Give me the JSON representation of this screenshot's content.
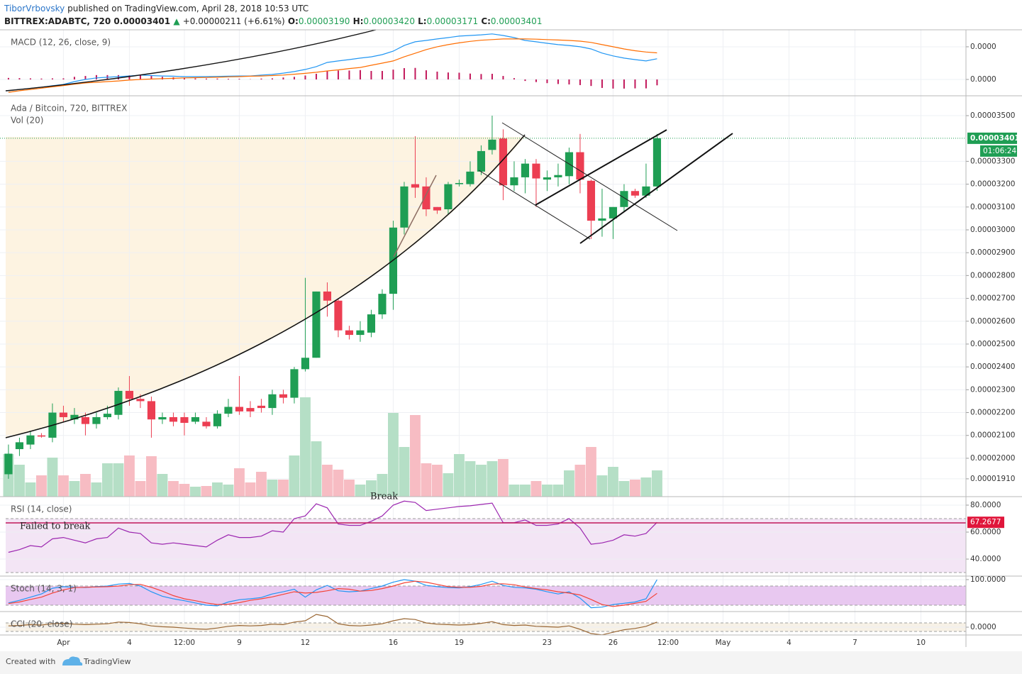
{
  "header": {
    "author": "TiborVrbovsky",
    "published": "published on TradingView.com, April 28, 2018 10:53 UTC",
    "symbol": "BITTREX:ADABTC, 720",
    "price": "0.00003401",
    "arrow": "▲",
    "change": "+0.00000211 (+6.61%)",
    "o_label": "O:",
    "o": "0.00003190",
    "h_label": "H:",
    "h": "0.00003420",
    "l_label": "L:",
    "l": "0.00003171",
    "c_label": "C:",
    "c": "0.00003401"
  },
  "annotations": {
    "failed": "Failed to break",
    "break": "Break"
  },
  "footer": {
    "created": "Created with",
    "brand": "TradingView"
  },
  "chart_data": [
    {
      "type": "macd",
      "title": "MACD (12, 26, close, 9)",
      "ylim": [
        -7.5e-07,
        2.28e-06
      ],
      "yticks": [
        {
          "value": 0,
          "label": "0.0000"
        },
        {
          "value": 1.5e-06,
          "label": "0.0000"
        }
      ],
      "series": [
        {
          "color": "#2196f3",
          "values": [
            -5.2e-07,
            -4.6e-07,
            -4.1e-07,
            -3.6e-07,
            -2.9e-07,
            -2.3e-07,
            -1e-07,
            0,
            7e-08,
            1e-07,
            1.3e-07,
            1.6e-07,
            2e-07,
            1.8e-07,
            1.6e-07,
            1.5e-07,
            1.3e-07,
            1.3e-07,
            1.3e-07,
            1.4e-07,
            1.5e-07,
            1.6e-07,
            1.6e-07,
            2e-07,
            2.3e-07,
            2.9e-07,
            3.6e-07,
            4.6e-07,
            5.9e-07,
            7.8e-07,
            8.5e-07,
            9.1e-07,
            9.8e-07,
            1.04e-06,
            1.14e-06,
            1.3e-06,
            1.56e-06,
            1.73e-06,
            1.79e-06,
            1.86e-06,
            1.92e-06,
            1.99e-06,
            2.02e-06,
            2.05e-06,
            2.09e-06,
            2.02e-06,
            1.92e-06,
            1.79e-06,
            1.73e-06,
            1.66e-06,
            1.6e-06,
            1.56e-06,
            1.5e-06,
            1.4e-06,
            1.21e-06,
            1.08e-06,
            9.8e-07,
            9.1e-07,
            8.5e-07,
            9.5e-07
          ]
        },
        {
          "color": "#ff6d00",
          "values": [
            -5.9e-07,
            -5.2e-07,
            -4.6e-07,
            -4e-07,
            -3.4e-07,
            -2.8e-07,
            -2.2e-07,
            -1.6e-07,
            -1.3e-07,
            -1e-07,
            -7e-08,
            -3e-08,
            0,
            2e-08,
            4e-08,
            5e-08,
            7e-08,
            8e-08,
            9e-08,
            1e-07,
            1.2e-07,
            1.3e-07,
            1.5e-07,
            1.6e-07,
            1.8e-07,
            2e-07,
            2.4e-07,
            2.8e-07,
            3.3e-07,
            3.9e-07,
            4.4e-07,
            5e-07,
            5.5e-07,
            6.5e-07,
            7.5e-07,
            8.5e-07,
            1.04e-06,
            1.2e-06,
            1.37e-06,
            1.5e-06,
            1.6e-06,
            1.68e-06,
            1.75e-06,
            1.8e-06,
            1.83e-06,
            1.86e-06,
            1.86e-06,
            1.86e-06,
            1.85e-06,
            1.83e-06,
            1.81e-06,
            1.79e-06,
            1.76e-06,
            1.7e-06,
            1.6e-06,
            1.5e-06,
            1.4e-06,
            1.32e-06,
            1.26e-06,
            1.22e-06
          ]
        }
      ],
      "histogram": {
        "color": "#c2185b",
        "values": [
          7e-08,
          6e-08,
          5e-08,
          4e-08,
          5e-08,
          5e-08,
          1.2e-07,
          1.6e-07,
          2e-07,
          2e-07,
          2e-07,
          1.9e-07,
          2e-07,
          1.6e-07,
          1.2e-07,
          1e-07,
          6e-08,
          5e-08,
          4e-08,
          4e-08,
          3e-08,
          3e-08,
          1e-08,
          4e-08,
          5e-08,
          9e-08,
          1.2e-07,
          1.8e-07,
          2.6e-07,
          3.9e-07,
          4.1e-07,
          4.1e-07,
          4.3e-07,
          3.9e-07,
          3.9e-07,
          4.5e-07,
          5.2e-07,
          5.3e-07,
          4.2e-07,
          3.6e-07,
          3.2e-07,
          3.1e-07,
          2.7e-07,
          2.5e-07,
          2.6e-07,
          1.6e-07,
          6e-08,
          -7e-08,
          -1.2e-07,
          -1.7e-07,
          -2.1e-07,
          -2.3e-07,
          -2.6e-07,
          -3e-07,
          -3.9e-07,
          -4.2e-07,
          -4.2e-07,
          -4.1e-07,
          -4.1e-07,
          -2.7e-07
        ]
      }
    },
    {
      "type": "candlestick",
      "title": "Ada / Bitcoin, 720, BITTREX",
      "up_color": "#1f9e54",
      "down_color": "#ec3e52",
      "ylim": [
        1.832e-05,
        3.587e-05
      ],
      "yticks": [
        {
          "value": 3.5e-05,
          "label": "0.00003500"
        },
        {
          "value": 3.3e-05,
          "label": "0.00003300"
        },
        {
          "value": 3.2e-05,
          "label": "0.00003200"
        },
        {
          "value": 3.1e-05,
          "label": "0.00003100"
        },
        {
          "value": 3e-05,
          "label": "0.00003000"
        },
        {
          "value": 2.9e-05,
          "label": "0.00002900"
        },
        {
          "value": 2.8e-05,
          "label": "0.00002800"
        },
        {
          "value": 2.7e-05,
          "label": "0.00002700"
        },
        {
          "value": 2.6e-05,
          "label": "0.00002600"
        },
        {
          "value": 2.5e-05,
          "label": "0.00002500"
        },
        {
          "value": 2.4e-05,
          "label": "0.00002400"
        },
        {
          "value": 2.3e-05,
          "label": "0.00002300"
        },
        {
          "value": 2.2e-05,
          "label": "0.00002200"
        },
        {
          "value": 2.1e-05,
          "label": "0.00002100"
        },
        {
          "value": 2e-05,
          "label": "0.00002000"
        },
        {
          "value": 1.91e-05,
          "label": "0.00001910"
        }
      ],
      "open": [
        1.93e-05,
        2.04e-05,
        2.06e-05,
        2.1e-05,
        2.09e-05,
        2.2e-05,
        2.17e-05,
        2.18e-05,
        2.15e-05,
        2.18e-05,
        2.19e-05,
        2.295e-05,
        2.26e-05,
        2.25e-05,
        2.17e-05,
        2.18e-05,
        2.18e-05,
        2.16e-05,
        2.16e-05,
        2.14e-05,
        2.195e-05,
        2.225e-05,
        2.22e-05,
        2.23e-05,
        2.22e-05,
        2.28e-05,
        2.265e-05,
        2.39e-05,
        2.44e-05,
        2.73e-05,
        2.69e-05,
        2.56e-05,
        2.54e-05,
        2.55e-05,
        2.63e-05,
        2.72e-05,
        3.01e-05,
        3.2e-05,
        3.19e-05,
        3.1e-05,
        3.09e-05,
        3.2e-05,
        3.2e-05,
        3.255e-05,
        3.35e-05,
        3.4e-05,
        3.195e-05,
        3.23e-05,
        3.29e-05,
        3.22e-05,
        3.23e-05,
        3.235e-05,
        3.34e-05,
        3.215e-05,
        3.04e-05,
        3.05e-05,
        3.1e-05,
        3.17e-05,
        3.15e-05,
        3.19e-05
      ],
      "high": [
        2.06e-05,
        2.09e-05,
        2.12e-05,
        2.11e-05,
        2.24e-05,
        2.23e-05,
        2.22e-05,
        2.2e-05,
        2.2e-05,
        2.23e-05,
        2.31e-05,
        2.36e-05,
        2.28e-05,
        2.27e-05,
        2.2e-05,
        2.2e-05,
        2.2e-05,
        2.2e-05,
        2.18e-05,
        2.21e-05,
        2.26e-05,
        2.36e-05,
        2.25e-05,
        2.26e-05,
        2.3e-05,
        2.3e-05,
        2.4e-05,
        2.79e-05,
        2.73e-05,
        2.77e-05,
        2.7e-05,
        2.58e-05,
        2.6e-05,
        2.65e-05,
        2.74e-05,
        3.04e-05,
        3.21e-05,
        3.41e-05,
        3.23e-05,
        3.1e-05,
        3.21e-05,
        3.22e-05,
        3.3e-05,
        3.37e-05,
        3.5e-05,
        3.44e-05,
        3.3e-05,
        3.31e-05,
        3.31e-05,
        3.26e-05,
        3.29e-05,
        3.36e-05,
        3.42e-05,
        3.22e-05,
        3.18e-05,
        3.1e-05,
        3.2e-05,
        3.18e-05,
        3.29e-05,
        3.42e-05
      ],
      "low": [
        1.91e-05,
        2.01e-05,
        2.04e-05,
        2.09e-05,
        2.07e-05,
        2.16e-05,
        2.15e-05,
        2.1e-05,
        2.13e-05,
        2.17e-05,
        2.17e-05,
        2.23e-05,
        2.22e-05,
        2.09e-05,
        2.15e-05,
        2.14e-05,
        2.1e-05,
        2.15e-05,
        2.13e-05,
        2.13e-05,
        2.18e-05,
        2.19e-05,
        2.18e-05,
        2.2e-05,
        2.19e-05,
        2.24e-05,
        2.24e-05,
        2.38e-05,
        2.44e-05,
        2.62e-05,
        2.53e-05,
        2.52e-05,
        2.51e-05,
        2.53e-05,
        2.61e-05,
        2.65e-05,
        2.98e-05,
        3.14e-05,
        3.06e-05,
        3.07e-05,
        3.07e-05,
        3.19e-05,
        3.19e-05,
        3.24e-05,
        3.33e-05,
        3.13e-05,
        3.17e-05,
        3.16e-05,
        3.1e-05,
        3.17e-05,
        3.19e-05,
        3.2e-05,
        3.16e-05,
        2.96e-05,
        2.97e-05,
        2.96e-05,
        3.08e-05,
        3.14e-05,
        3.14e-05,
        3.171e-05
      ],
      "close": [
        2.02e-05,
        2.07e-05,
        2.1e-05,
        2.095e-05,
        2.2e-05,
        2.18e-05,
        2.19e-05,
        2.15e-05,
        2.18e-05,
        2.195e-05,
        2.295e-05,
        2.26e-05,
        2.25e-05,
        2.17e-05,
        2.18e-05,
        2.16e-05,
        2.155e-05,
        2.18e-05,
        2.14e-05,
        2.195e-05,
        2.225e-05,
        2.205e-05,
        2.205e-05,
        2.22e-05,
        2.28e-05,
        2.265e-05,
        2.39e-05,
        2.44e-05,
        2.73e-05,
        2.69e-05,
        2.56e-05,
        2.54e-05,
        2.56e-05,
        2.63e-05,
        2.72e-05,
        3.01e-05,
        3.19e-05,
        3.185e-05,
        3.09e-05,
        3.085e-05,
        3.2e-05,
        3.205e-05,
        3.255e-05,
        3.345e-05,
        3.395e-05,
        3.195e-05,
        3.23e-05,
        3.29e-05,
        3.225e-05,
        3.23e-05,
        3.24e-05,
        3.34e-05,
        3.22e-05,
        3.04e-05,
        3.05e-05,
        3.1e-05,
        3.17e-05,
        3.15e-05,
        3.19e-05,
        3.401e-05
      ],
      "last_price": {
        "value": 3.401e-05,
        "label": "0.00003401"
      },
      "countdown": "01:06:24",
      "volume": {
        "name": "Vol (20)",
        "up_color": "#b5dfc6",
        "down_color": "#f7bcc3",
        "ylim": [
          0,
          565
        ],
        "values": [
          60,
          45,
          20,
          30,
          55,
          30,
          22,
          32,
          20,
          47,
          47,
          58,
          22,
          57,
          32,
          22,
          18,
          14,
          15,
          20,
          17,
          40,
          20,
          35,
          24,
          24,
          58,
          140,
          78,
          45,
          38,
          24,
          17,
          23,
          32,
          118,
          70,
          115,
          47,
          45,
          33,
          60,
          50,
          45,
          50,
          53,
          17,
          17,
          22,
          17,
          17,
          37,
          45,
          70,
          30,
          42,
          22,
          24,
          27,
          37
        ]
      }
    },
    {
      "type": "line",
      "title": "RSI (14, close)",
      "ylim": [
        27.4,
        86.3
      ],
      "yticks": [
        {
          "value": 80,
          "label": "80.0000"
        },
        {
          "value": 60,
          "label": "60.0000"
        },
        {
          "value": 40,
          "label": "40.0000"
        }
      ],
      "bands": [
        30,
        70
      ],
      "band_color": "#f3e5f5",
      "series": [
        {
          "color": "#9c27b0",
          "values": [
            45,
            47,
            50,
            49,
            55,
            56,
            54,
            52,
            55,
            56,
            63,
            60,
            59,
            52,
            51,
            52,
            51,
            50,
            49,
            54,
            58,
            56,
            56,
            57,
            61,
            60,
            70,
            72,
            81,
            78,
            66,
            65,
            65,
            68,
            72,
            80,
            83,
            82,
            76,
            77,
            78,
            79,
            79.5,
            80.5,
            81.5,
            67,
            67,
            69,
            65,
            65,
            66,
            70,
            63,
            51,
            52,
            54,
            58,
            57,
            59,
            67.2677
          ]
        }
      ],
      "last_value": {
        "value": 67.2677,
        "label": "67.2677"
      }
    },
    {
      "type": "line",
      "title": "Stoch (14, 3, 1)",
      "ylim": [
        0,
        111
      ],
      "yticks": [
        {
          "value": 100,
          "label": "100.0000"
        }
      ],
      "bands": [
        20,
        80
      ],
      "band_color": "#e8c8f0",
      "series": [
        {
          "color": "#2196f3",
          "values": [
            27,
            35,
            45,
            55,
            73,
            78,
            76,
            75,
            78,
            80,
            86,
            88,
            80,
            62,
            48,
            40,
            34,
            27,
            20,
            18,
            30,
            37,
            40,
            44,
            55,
            62,
            70,
            45,
            68,
            82,
            65,
            62,
            64,
            72,
            80,
            92,
            100,
            95,
            82,
            78,
            75,
            74,
            78,
            85,
            95,
            82,
            76,
            74,
            70,
            62,
            55,
            62,
            42,
            12,
            14,
            22,
            26,
            30,
            40,
            100
          ]
        },
        {
          "color": "#f44336",
          "values": [
            25,
            30,
            38,
            45,
            58,
            68,
            75,
            76,
            77,
            78,
            80,
            84,
            85,
            76,
            64,
            50,
            40,
            34,
            27,
            22,
            23,
            28,
            35,
            40,
            46,
            54,
            62,
            58,
            60,
            65,
            72,
            70,
            64,
            66,
            72,
            80,
            90,
            95,
            92,
            85,
            78,
            76,
            76,
            79,
            86,
            87,
            84,
            77,
            72,
            68,
            62,
            58,
            52,
            38,
            22,
            16,
            20,
            26,
            32,
            57
          ]
        }
      ]
    },
    {
      "type": "line",
      "title": "CCI (20, close)",
      "ylim": [
        -183,
        367
      ],
      "yticks": [
        {
          "value": 0,
          "label": "0.0000"
        }
      ],
      "bands": [
        -100,
        100
      ],
      "band_color": "#f7f1e6",
      "series": [
        {
          "color": "#996633",
          "values": [
            30,
            40,
            60,
            50,
            80,
            90,
            70,
            60,
            70,
            80,
            120,
            110,
            80,
            30,
            10,
            0,
            -20,
            -40,
            -50,
            -20,
            20,
            40,
            30,
            40,
            70,
            60,
            120,
            150,
            300,
            250,
            80,
            40,
            30,
            50,
            80,
            150,
            200,
            180,
            100,
            70,
            60,
            50,
            60,
            90,
            130,
            60,
            40,
            50,
            20,
            10,
            0,
            30,
            -50,
            -150,
            -180,
            -120,
            -60,
            -30,
            20,
            120
          ]
        }
      ],
      "xlim": [
        -0.77,
        87.1
      ],
      "xticks": [
        {
          "value": 5,
          "label": "Apr"
        },
        {
          "value": 11,
          "label": "4"
        },
        {
          "value": 16,
          "label": "12:00"
        },
        {
          "value": 21,
          "label": "9"
        },
        {
          "value": 27,
          "label": "12"
        },
        {
          "value": 35,
          "label": "16"
        },
        {
          "value": 41,
          "label": "19"
        },
        {
          "value": 49,
          "label": "23"
        },
        {
          "value": 55,
          "label": "26"
        },
        {
          "value": 60,
          "label": "12:00"
        },
        {
          "value": 65,
          "label": "May"
        },
        {
          "value": 71,
          "label": "4"
        },
        {
          "value": 77,
          "label": "7"
        },
        {
          "value": 83,
          "label": "10"
        }
      ]
    }
  ]
}
